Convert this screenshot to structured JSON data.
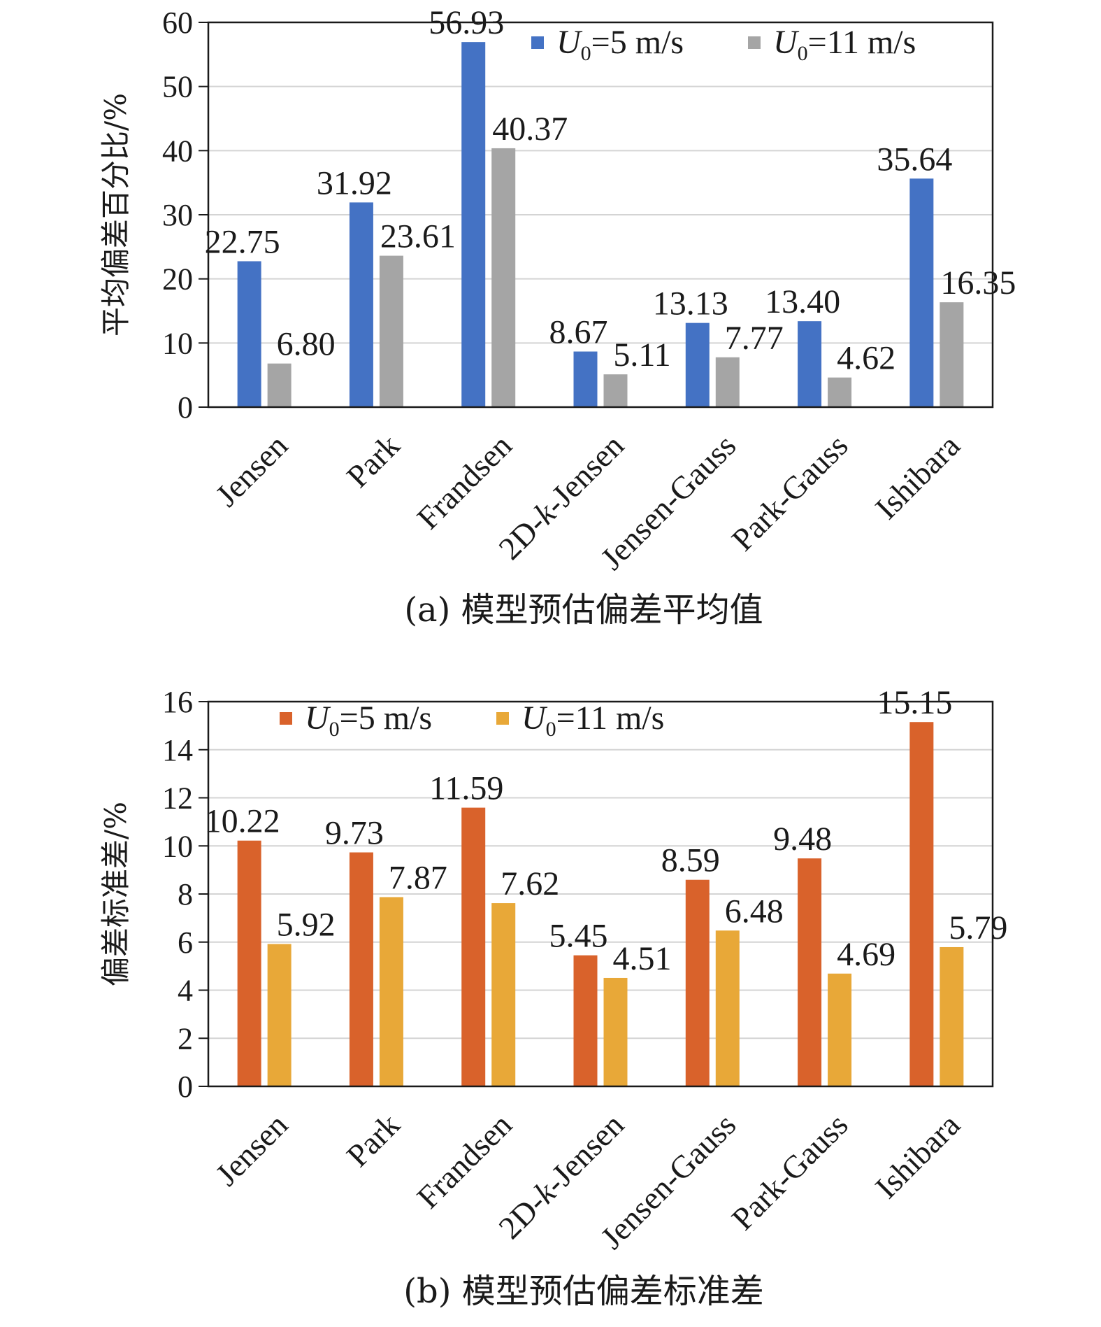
{
  "chart_data": [
    {
      "type": "bar",
      "caption": "(a) 模型预估偏差平均值",
      "ylabel": "平均偏差百分比/%",
      "categories": [
        "Jensen",
        "Park",
        "Frandsen",
        "2D-k-Jensen",
        "Jensen-Gauss",
        "Park-Gauss",
        "Ishibara"
      ],
      "ylim": [
        0,
        60
      ],
      "yticks": [
        0,
        10,
        20,
        30,
        40,
        50,
        60
      ],
      "grid": true,
      "legend_position": "top-right",
      "series": [
        {
          "name": "U0=5 m/s",
          "color": "#4472c4",
          "values": [
            22.75,
            31.92,
            56.93,
            8.67,
            13.13,
            13.4,
            35.64
          ],
          "labels": [
            "22.75",
            "31.92",
            "56.93",
            "8.67",
            "13.13",
            "13.40",
            "35.64"
          ]
        },
        {
          "name": "U0=11 m/s",
          "color": "#a5a5a5",
          "values": [
            6.8,
            23.61,
            40.37,
            5.11,
            7.77,
            4.62,
            16.35
          ],
          "labels": [
            "6.80",
            "23.61",
            "40.37",
            "5.11",
            "7.77",
            "4.62",
            "16.35"
          ]
        }
      ]
    },
    {
      "type": "bar",
      "caption": "(b) 模型预估偏差标准差",
      "ylabel": "偏差标准差/%",
      "categories": [
        "Jensen",
        "Park",
        "Frandsen",
        "2D-k-Jensen",
        "Jensen-Gauss",
        "Park-Gauss",
        "Ishibara"
      ],
      "ylim": [
        0,
        16
      ],
      "yticks": [
        0,
        2,
        4,
        6,
        8,
        10,
        12,
        14,
        16
      ],
      "grid": true,
      "legend_position": "top-left",
      "series": [
        {
          "name": "U0=5 m/s",
          "color": "#d9622b",
          "values": [
            10.22,
            9.73,
            11.59,
            5.45,
            8.59,
            9.48,
            15.15
          ],
          "labels": [
            "10.22",
            "9.73",
            "11.59",
            "5.45",
            "8.59",
            "9.48",
            "15.15"
          ]
        },
        {
          "name": "U0=11 m/s",
          "color": "#e8a838",
          "values": [
            5.92,
            7.87,
            7.62,
            4.51,
            6.48,
            4.69,
            5.79
          ],
          "labels": [
            "5.92",
            "7.87",
            "7.62",
            "4.51",
            "6.48",
            "4.69",
            "5.79"
          ]
        }
      ]
    }
  ]
}
